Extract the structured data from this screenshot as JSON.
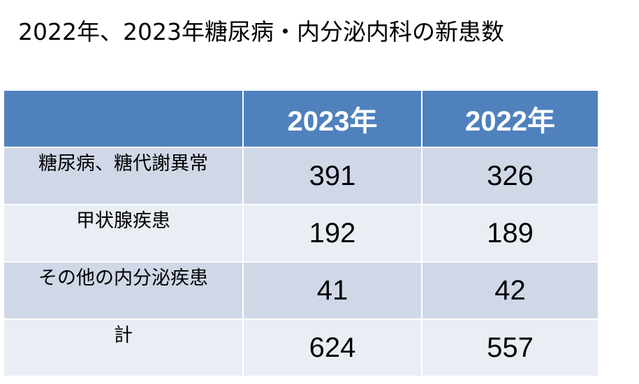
{
  "title": "2022年、2023年糖尿病・内分泌内科の新患数",
  "chart_data": {
    "type": "table",
    "title": "2022年、2023年糖尿病・内分泌内科の新患数",
    "columns": [
      "",
      "2023年",
      "2022年"
    ],
    "rows": [
      {
        "label": "糖尿病、糖代謝異常",
        "values": [
          "391",
          "326"
        ]
      },
      {
        "label": "甲状腺疾患",
        "values": [
          "192",
          "189"
        ]
      },
      {
        "label": "その他の内分泌疾患",
        "values": [
          "41",
          "42"
        ]
      },
      {
        "label": "計",
        "values": [
          "624",
          "557"
        ]
      }
    ]
  },
  "colors": {
    "header_bg": "#4f81bd",
    "row_dark": "#d0d8e8",
    "row_light": "#e9edf4"
  }
}
